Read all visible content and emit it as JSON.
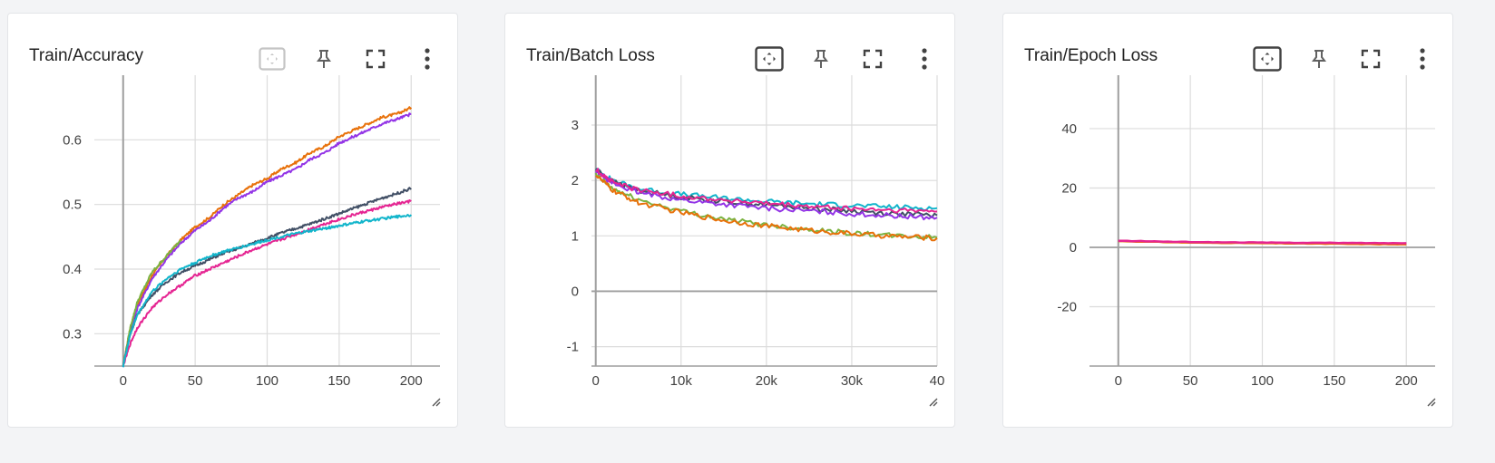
{
  "cards": [
    {
      "title": "Train/Accuracy",
      "fit_icon_active": false
    },
    {
      "title": "Train/Batch Loss",
      "fit_icon_active": true
    },
    {
      "title": "Train/Epoch Loss",
      "fit_icon_active": true
    }
  ],
  "toolbar_icons": [
    "fit-domain-icon",
    "pin-icon",
    "fullscreen-icon",
    "more-vert-icon"
  ],
  "chart_data": [
    {
      "type": "line",
      "title": "Train/Accuracy",
      "xlim": [
        -20,
        220
      ],
      "ylim": [
        0.25,
        0.7
      ],
      "x_ticks": [
        "0",
        "50",
        "100",
        "150",
        "200"
      ],
      "y_ticks": [
        "0.3",
        "0.4",
        "0.5",
        "0.6"
      ],
      "grid": true,
      "series": [
        {
          "color": "#e8710a",
          "x": [
            0,
            5,
            10,
            20,
            30,
            40,
            50,
            60,
            70,
            80,
            90,
            100,
            110,
            120,
            130,
            140,
            150,
            160,
            170,
            180,
            190,
            200
          ],
          "y": [
            0.25,
            0.31,
            0.345,
            0.39,
            0.42,
            0.445,
            0.465,
            0.48,
            0.5,
            0.515,
            0.53,
            0.54,
            0.555,
            0.565,
            0.58,
            0.59,
            0.605,
            0.615,
            0.625,
            0.635,
            0.64,
            0.65
          ]
        },
        {
          "color": "#9334e6",
          "x": [
            0,
            5,
            10,
            20,
            30,
            40,
            50,
            60,
            70,
            80,
            90,
            100,
            110,
            120,
            130,
            140,
            150,
            160,
            170,
            180,
            190,
            200
          ],
          "y": [
            0.25,
            0.305,
            0.34,
            0.385,
            0.415,
            0.44,
            0.46,
            0.475,
            0.495,
            0.51,
            0.52,
            0.535,
            0.545,
            0.555,
            0.57,
            0.58,
            0.595,
            0.605,
            0.615,
            0.625,
            0.632,
            0.64
          ]
        },
        {
          "color": "#7cb342",
          "x": [
            0,
            5,
            10,
            20,
            30,
            40
          ],
          "y": [
            0.25,
            0.31,
            0.35,
            0.395,
            0.42,
            0.445
          ]
        },
        {
          "color": "#425066",
          "x": [
            0,
            5,
            10,
            20,
            30,
            40,
            50,
            60,
            70,
            80,
            90,
            100,
            110,
            120,
            130,
            140,
            150,
            160,
            170,
            180,
            190,
            200
          ],
          "y": [
            0.25,
            0.3,
            0.33,
            0.36,
            0.38,
            0.395,
            0.405,
            0.415,
            0.425,
            0.432,
            0.44,
            0.448,
            0.456,
            0.463,
            0.47,
            0.478,
            0.486,
            0.494,
            0.502,
            0.51,
            0.517,
            0.525
          ]
        },
        {
          "color": "#e52592",
          "x": [
            0,
            5,
            10,
            20,
            30,
            40,
            50,
            60,
            70,
            80,
            90,
            100,
            110,
            120,
            130,
            140,
            150,
            160,
            170,
            180,
            190,
            200
          ],
          "y": [
            0.25,
            0.285,
            0.31,
            0.34,
            0.36,
            0.375,
            0.39,
            0.4,
            0.41,
            0.42,
            0.43,
            0.438,
            0.446,
            0.454,
            0.462,
            0.47,
            0.477,
            0.484,
            0.49,
            0.496,
            0.501,
            0.505
          ]
        },
        {
          "color": "#12b5cb",
          "x": [
            0,
            5,
            10,
            20,
            30,
            40,
            50,
            60,
            70,
            80,
            90,
            100,
            110,
            120,
            130,
            140,
            150,
            160,
            170,
            180,
            190,
            200
          ],
          "y": [
            0.25,
            0.3,
            0.33,
            0.365,
            0.385,
            0.4,
            0.41,
            0.42,
            0.427,
            0.433,
            0.439,
            0.445,
            0.45,
            0.455,
            0.459,
            0.463,
            0.467,
            0.471,
            0.475,
            0.478,
            0.481,
            0.484
          ]
        }
      ]
    },
    {
      "type": "line",
      "title": "Train/Batch Loss",
      "xlim": [
        -500,
        40000
      ],
      "ylim": [
        -1.35,
        3.9
      ],
      "x_ticks": [
        "0",
        "10k",
        "20k",
        "30k",
        "40"
      ],
      "y_ticks": [
        "-1",
        "0",
        "1",
        "2",
        "3"
      ],
      "grid": true,
      "series": [
        {
          "color": "#12b5cb",
          "x": [
            0,
            2000,
            5000,
            10000,
            15000,
            20000,
            25000,
            30000,
            35000,
            40000
          ],
          "y": [
            2.2,
            2.0,
            1.85,
            1.75,
            1.68,
            1.62,
            1.58,
            1.55,
            1.52,
            1.5
          ]
        },
        {
          "color": "#425066",
          "x": [
            0,
            2000,
            5000,
            10000,
            15000,
            20000,
            25000,
            30000,
            35000,
            40000
          ],
          "y": [
            2.2,
            1.98,
            1.82,
            1.7,
            1.62,
            1.56,
            1.5,
            1.45,
            1.4,
            1.37
          ]
        },
        {
          "color": "#9334e6",
          "x": [
            0,
            2000,
            5000,
            10000,
            15000,
            20000,
            25000,
            30000,
            35000,
            40000
          ],
          "y": [
            2.15,
            1.95,
            1.78,
            1.65,
            1.57,
            1.5,
            1.45,
            1.4,
            1.36,
            1.33
          ]
        },
        {
          "color": "#7cb342",
          "x": [
            0,
            2000,
            5000,
            10000,
            15000,
            20000,
            25000,
            30000,
            35000,
            40000
          ],
          "y": [
            2.1,
            1.85,
            1.65,
            1.45,
            1.3,
            1.2,
            1.12,
            1.05,
            1.0,
            0.97
          ]
        },
        {
          "color": "#e8710a",
          "x": [
            0,
            2000,
            5000,
            10000,
            15000,
            20000,
            25000,
            30000,
            35000,
            40000
          ],
          "y": [
            2.1,
            1.82,
            1.6,
            1.42,
            1.28,
            1.18,
            1.1,
            1.04,
            0.99,
            0.96
          ]
        },
        {
          "color": "#e52592",
          "x": [
            0,
            2000,
            5000,
            10000,
            15000,
            20000,
            25000,
            30000,
            35000,
            40000
          ],
          "y": [
            2.2,
            1.97,
            1.83,
            1.72,
            1.65,
            1.58,
            1.53,
            1.49,
            1.46,
            1.44
          ]
        }
      ]
    },
    {
      "type": "line",
      "title": "Train/Epoch Loss",
      "xlim": [
        -20,
        220
      ],
      "ylim": [
        -40,
        58
      ],
      "x_ticks": [
        "0",
        "50",
        "100",
        "150",
        "200"
      ],
      "y_ticks": [
        "-20",
        "0",
        "20",
        "40"
      ],
      "grid": true,
      "series": [
        {
          "color": "#e8710a",
          "x": [
            0,
            50,
            100,
            150,
            200
          ],
          "y": [
            2.1,
            1.6,
            1.4,
            1.2,
            1.0
          ]
        },
        {
          "color": "#e52592",
          "x": [
            0,
            50,
            100,
            150,
            200
          ],
          "y": [
            2.2,
            1.8,
            1.6,
            1.5,
            1.4
          ]
        }
      ]
    }
  ]
}
